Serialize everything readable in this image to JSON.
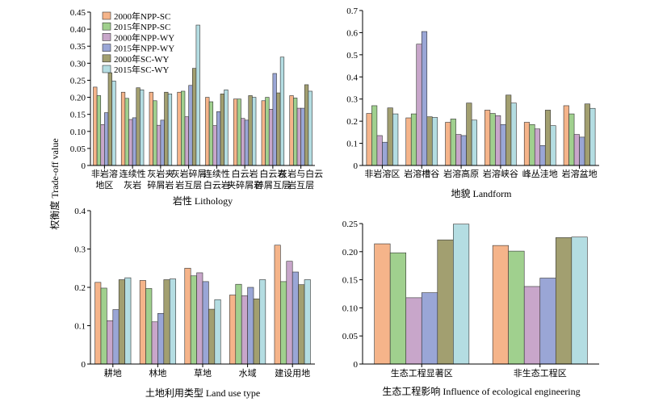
{
  "y_label": "权衡度 Trade-off value",
  "colors": [
    "#f5b48a",
    "#a0d08e",
    "#c8a6ca",
    "#9aa6d6",
    "#a29f70",
    "#b4dde2"
  ],
  "chart_data": [
    {
      "type": "bar",
      "xlabel": "岩性  Lithology",
      "ylabel": "权衡度 Trade-off value",
      "ylim": [
        0,
        0.45
      ],
      "yticks": [
        "0",
        "0.05",
        "0.10",
        "0.15",
        "0.20",
        "0.25",
        "0.30",
        "0.35",
        "0.40",
        "0.45"
      ],
      "legend": "top-left",
      "categories": [
        [
          "非岩溶",
          "地区"
        ],
        [
          "连续性",
          "灰岩"
        ],
        [
          "灰岩夹",
          "碎屑岩"
        ],
        [
          "灰岩碎屑",
          "岩互层"
        ],
        [
          "连续性",
          "白云岩"
        ],
        [
          "白云岩",
          "夹碎屑岩"
        ],
        [
          "白云岩",
          "碎屑互层"
        ],
        [
          "灰岩与白云",
          "岩互层"
        ]
      ],
      "series": [
        {
          "name": "2000年NPP-SC",
          "values": [
            0.23,
            0.215,
            0.215,
            0.215,
            0.2,
            0.195,
            0.19,
            0.205
          ]
        },
        {
          "name": "2015年NPP-SC",
          "values": [
            0.205,
            0.197,
            0.19,
            0.218,
            0.187,
            0.195,
            0.2,
            0.198
          ]
        },
        {
          "name": "2000年NPP-WY",
          "values": [
            0.12,
            0.135,
            0.118,
            0.143,
            0.117,
            0.138,
            0.165,
            0.168
          ]
        },
        {
          "name": "2015年NPP-WY",
          "values": [
            0.155,
            0.14,
            0.133,
            0.235,
            0.158,
            0.133,
            0.27,
            0.168
          ]
        },
        {
          "name": "2000年SC-WY",
          "values": [
            0.272,
            0.228,
            0.215,
            0.285,
            0.21,
            0.205,
            0.213,
            0.237
          ]
        },
        {
          "name": "2015年SC-WY",
          "values": [
            0.248,
            0.222,
            0.21,
            0.412,
            0.222,
            0.2,
            0.318,
            0.218
          ]
        }
      ]
    },
    {
      "type": "bar",
      "xlabel": "地貌  Landform",
      "ylim": [
        0,
        0.7
      ],
      "yticks": [
        "0",
        "0.1",
        "0.2",
        "0.3",
        "0.4",
        "0.5",
        "0.6",
        "0.7"
      ],
      "categories": [
        [
          "非岩溶区"
        ],
        [
          "岩溶槽谷"
        ],
        [
          "岩溶高原"
        ],
        [
          "岩溶峡谷"
        ],
        [
          "峰丛洼地"
        ],
        [
          "岩溶盆地"
        ]
      ],
      "series": [
        {
          "name": "2000年NPP-SC",
          "values": [
            0.235,
            0.215,
            0.195,
            0.25,
            0.195,
            0.27
          ]
        },
        {
          "name": "2015年NPP-SC",
          "values": [
            0.27,
            0.233,
            0.21,
            0.235,
            0.185,
            0.233
          ]
        },
        {
          "name": "2000年NPP-WY",
          "values": [
            0.135,
            0.548,
            0.14,
            0.225,
            0.165,
            0.14
          ]
        },
        {
          "name": "2015年NPP-WY",
          "values": [
            0.105,
            0.605,
            0.135,
            0.185,
            0.09,
            0.128
          ]
        },
        {
          "name": "2000年SC-WY",
          "values": [
            0.26,
            0.22,
            0.282,
            0.318,
            0.25,
            0.278
          ]
        },
        {
          "name": "2015年SC-WY",
          "values": [
            0.233,
            0.217,
            0.205,
            0.282,
            0.18,
            0.258
          ]
        }
      ]
    },
    {
      "type": "bar",
      "xlabel": "土地利用类型  Land use type",
      "ylim": [
        0,
        0.4
      ],
      "yticks": [
        "0",
        "0.1",
        "0.2",
        "0.3",
        "0.4"
      ],
      "categories": [
        [
          "耕地"
        ],
        [
          "林地"
        ],
        [
          "草地"
        ],
        [
          "水域"
        ],
        [
          "建设用地"
        ]
      ],
      "series": [
        {
          "name": "2000年NPP-SC",
          "values": [
            0.213,
            0.218,
            0.25,
            0.18,
            0.31
          ]
        },
        {
          "name": "2015年NPP-SC",
          "values": [
            0.198,
            0.197,
            0.23,
            0.208,
            0.215
          ]
        },
        {
          "name": "2000年NPP-WY",
          "values": [
            0.113,
            0.11,
            0.238,
            0.178,
            0.268
          ]
        },
        {
          "name": "2015年NPP-WY",
          "values": [
            0.142,
            0.132,
            0.215,
            0.2,
            0.24
          ]
        },
        {
          "name": "2000年SC-WY",
          "values": [
            0.22,
            0.22,
            0.143,
            0.17,
            0.207
          ]
        },
        {
          "name": "2015年SC-WY",
          "values": [
            0.225,
            0.222,
            0.168,
            0.22,
            0.22
          ]
        }
      ]
    },
    {
      "type": "bar",
      "xlabel": "生态工程影响  Influence of ecological engineering",
      "ylim": [
        0,
        0.25
      ],
      "yticks": [
        "0",
        "0.05",
        "0.10",
        "0.15",
        "0.20",
        "0.25"
      ],
      "categories": [
        [
          "生态工程显著区"
        ],
        [
          "非生态工程区"
        ]
      ],
      "series": [
        {
          "name": "2000年NPP-SC",
          "values": [
            0.214,
            0.211
          ]
        },
        {
          "name": "2015年NPP-SC",
          "values": [
            0.198,
            0.201
          ]
        },
        {
          "name": "2000年NPP-WY",
          "values": [
            0.118,
            0.138
          ]
        },
        {
          "name": "2015年NPP-WY",
          "values": [
            0.127,
            0.153
          ]
        },
        {
          "name": "2000年SC-WY",
          "values": [
            0.221,
            0.225
          ]
        },
        {
          "name": "2015年SC-WY",
          "values": [
            0.249,
            0.226
          ]
        }
      ]
    }
  ]
}
